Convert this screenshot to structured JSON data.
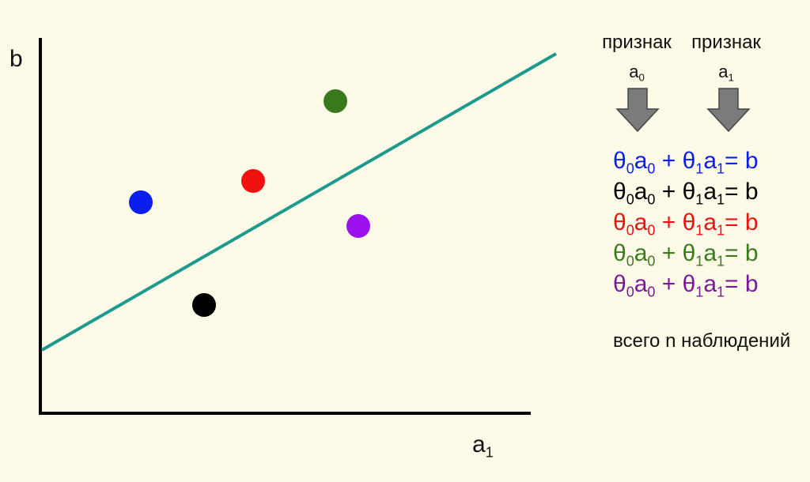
{
  "axes": {
    "y_label": "b",
    "x_label": "a",
    "x_label_sub": "1"
  },
  "regression_line": {
    "color": "#1e9a8c"
  },
  "points": [
    {
      "name": "blue",
      "color": "#0a1eef"
    },
    {
      "name": "red",
      "color": "#ef1010"
    },
    {
      "name": "green",
      "color": "#3a7a1c"
    },
    {
      "name": "purple",
      "color": "#9a10ef"
    },
    {
      "name": "black",
      "color": "#000000"
    }
  ],
  "features": [
    {
      "word": "признак",
      "var": "a",
      "sub": "0"
    },
    {
      "word": "признак",
      "var": "a",
      "sub": "1"
    }
  ],
  "arrow_color": "#7b7b7b",
  "equation": {
    "theta": "θ",
    "a": "a",
    "sub0": "0",
    "sub1": "1",
    "plus": " + ",
    "equals": "= b"
  },
  "equation_colors": [
    "#0a1eef",
    "#000000",
    "#ef1010",
    "#3a7a1c",
    "#7a1a9a"
  ],
  "note": "всего n наблюдений"
}
